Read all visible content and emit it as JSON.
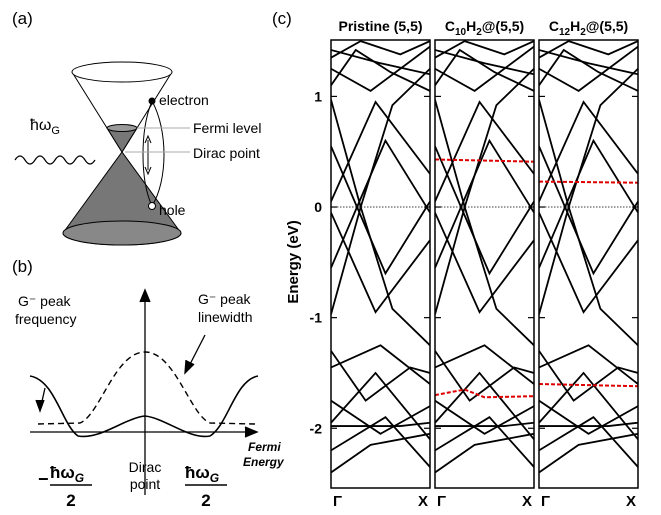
{
  "panel_a": {
    "label": "(a)",
    "photon": {
      "symbol": "ħω",
      "sub": "G"
    },
    "electron": "electron",
    "fermi_level": "Fermi level",
    "dirac_point": "Dirac point",
    "hole": "hole"
  },
  "panel_b": {
    "label": "(b)",
    "frequency_curve": [
      "G⁻ peak",
      "frequency"
    ],
    "linewidth_curve": [
      "G⁻ peak",
      "linewidth"
    ],
    "x_axis": [
      "Fermi",
      "Energy"
    ],
    "center": [
      "Dirac",
      "point"
    ],
    "left_tick": {
      "sign": "−",
      "numerator": "ħω",
      "sub": "G",
      "denominator": "2"
    },
    "right_tick": {
      "numerator": "ħω",
      "sub": "G",
      "denominator": "2"
    }
  },
  "panel_c": {
    "label": "(c)",
    "y_label": "Energy (eV)",
    "yticks": [
      1,
      0,
      -1,
      -2
    ],
    "ylim": [
      -2.54,
      1.51
    ],
    "panels": [
      {
        "title": [
          "Pristine (5,5)"
        ]
      },
      {
        "title": [
          "C",
          "10",
          "H",
          "2",
          "@(5,5)"
        ]
      },
      {
        "title": [
          "C",
          "12",
          "H",
          "2",
          "@(5,5)"
        ]
      }
    ],
    "k_start": "Γ",
    "k_end": "X"
  }
}
